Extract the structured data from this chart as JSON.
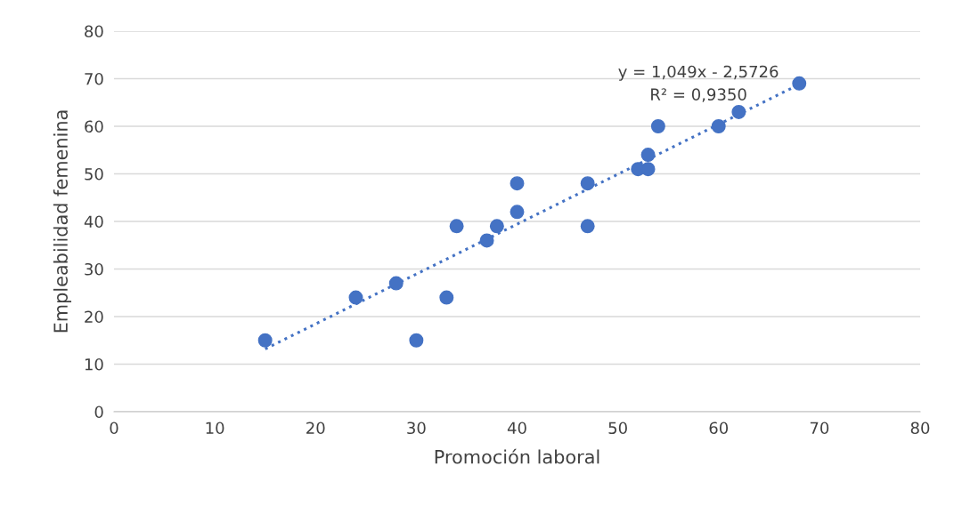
{
  "chart_data": {
    "type": "scatter",
    "xlabel": "Promoción laboral",
    "ylabel": "Empleabilidad femenina",
    "xlim": [
      0,
      80
    ],
    "xticks": [
      0,
      10,
      20,
      30,
      40,
      50,
      60,
      70,
      80
    ],
    "ylim": [
      0,
      80
    ],
    "yticks": [
      0,
      10,
      20,
      30,
      40,
      50,
      60,
      70,
      80
    ],
    "grid": "y",
    "legend": false,
    "marker": "circle",
    "series": [
      {
        "color": "#4472c4",
        "x": [
          15,
          24,
          28,
          30,
          33,
          34,
          37,
          38,
          40,
          40,
          47,
          47,
          52,
          53,
          53,
          54,
          60,
          62,
          68
        ],
        "values": [
          15,
          24,
          27,
          15,
          24,
          39,
          36,
          39,
          48,
          42,
          48,
          39,
          51,
          54,
          51,
          60,
          60,
          63,
          69
        ]
      },
      {
        "type": "line",
        "color": "#4472c4",
        "line_style": "dotted",
        "marker": "none",
        "x": [
          15,
          68
        ],
        "values": [
          13.2,
          68.8
        ]
      }
    ],
    "annotations": [
      "y = 1,049x - 2,5726\nR² = 0,9350"
    ]
  }
}
